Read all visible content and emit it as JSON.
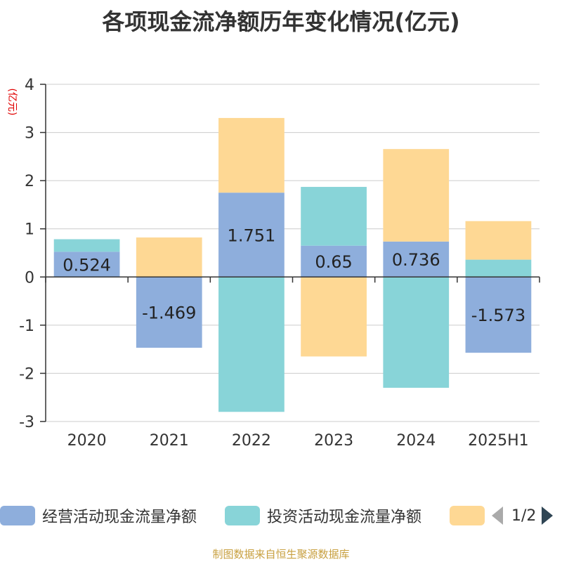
{
  "title": "各项现金流净额历年变化情况(亿元)",
  "source": "制图数据来自恒生聚源数据库",
  "pager": {
    "text": "1/2"
  },
  "legend": [
    {
      "name": "经营活动现金流量净额",
      "color": "#8eaedc"
    },
    {
      "name": "投资活动现金流量净额",
      "color": "#88d4d8"
    },
    {
      "name": "",
      "color": "#fed894"
    }
  ],
  "chart_data": {
    "type": "bar",
    "stacked": true,
    "ylabel": "(亿元)",
    "ylim": [
      -3,
      4
    ],
    "yticks": [
      4,
      3,
      2,
      1,
      0,
      -1,
      -2,
      -3
    ],
    "grid": true,
    "legend_position": "bottom",
    "categories": [
      "2020",
      "2021",
      "2022",
      "2023",
      "2024",
      "2025H1"
    ],
    "series": [
      {
        "name": "经营活动现金流量净额",
        "color": "#8eaedc",
        "values": [
          0.524,
          -1.469,
          1.751,
          0.65,
          0.736,
          -1.573
        ],
        "show_labels": true
      },
      {
        "name": "投资活动现金流量净额",
        "color": "#88d4d8",
        "values": [
          0.26,
          0.0,
          -2.8,
          1.22,
          -2.3,
          0.36
        ],
        "show_labels": false
      },
      {
        "color": "#fed894",
        "values": [
          0.0,
          0.82,
          1.55,
          -1.65,
          1.92,
          0.8
        ],
        "show_labels": false
      }
    ]
  }
}
